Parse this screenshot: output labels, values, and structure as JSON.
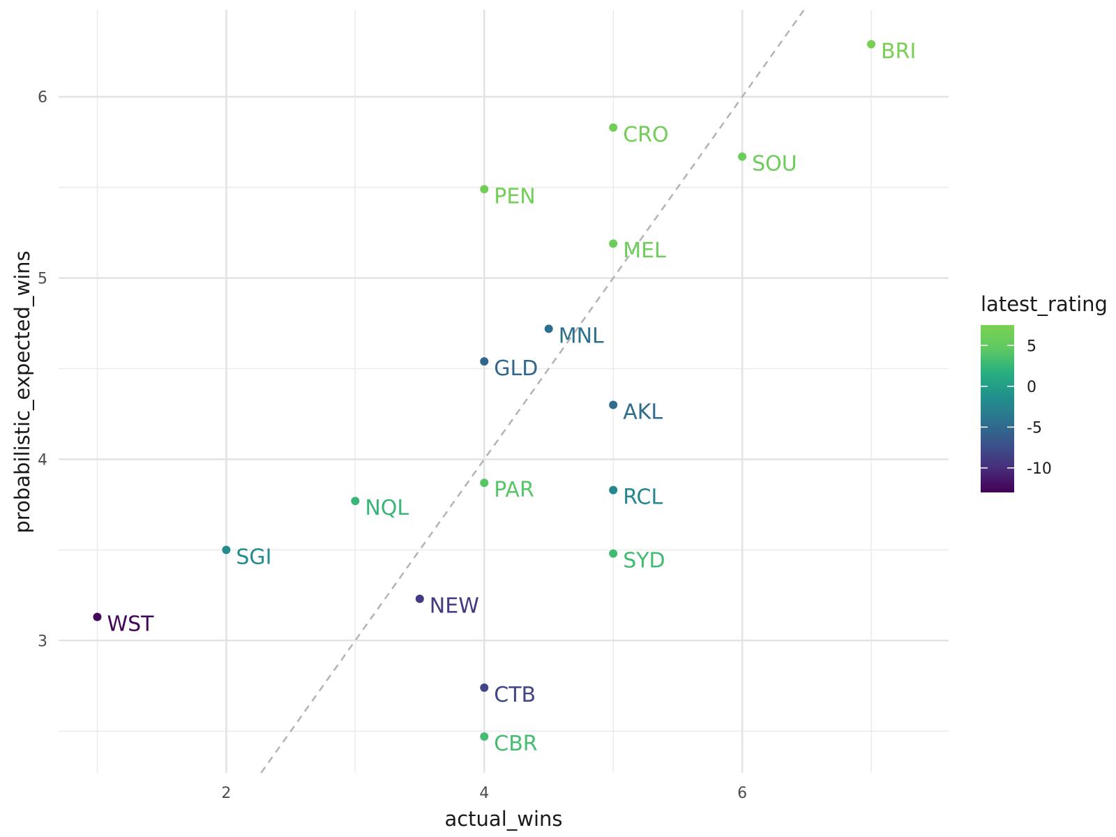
{
  "chart_data": {
    "type": "scatter",
    "title": "",
    "xlabel": "actual_wins",
    "ylabel": "probabilistic_expected_wins",
    "xlim": [
      0.7,
      7.6
    ],
    "ylim": [
      2.27,
      6.48
    ],
    "x_ticks": [
      2,
      4,
      6
    ],
    "y_ticks": [
      3,
      4,
      5,
      6
    ],
    "grid": true,
    "reference_line": {
      "style": "dashed",
      "color": "#b3b3b3",
      "slope": 1,
      "intercept": 0
    },
    "legend": {
      "title": "latest_rating",
      "placement": "right",
      "type": "colorbar",
      "range": [
        -13,
        7.5
      ],
      "ticks": [
        5,
        0,
        -5,
        -10
      ],
      "tick_labels": [
        "5",
        "0",
        "-5",
        "-10"
      ],
      "colors": [
        "#440154",
        "#472d7b",
        "#3b528b",
        "#2c728e",
        "#21918c",
        "#28ae80",
        "#5ec962",
        "#7ad151"
      ]
    },
    "points": [
      {
        "label": "BRI",
        "x": 7,
        "y": 6.29,
        "rating": 7.2
      },
      {
        "label": "CRO",
        "x": 5,
        "y": 5.83,
        "rating": 6.5
      },
      {
        "label": "SOU",
        "x": 6,
        "y": 5.67,
        "rating": 6.0
      },
      {
        "label": "PEN",
        "x": 4,
        "y": 5.49,
        "rating": 6.6
      },
      {
        "label": "MEL",
        "x": 5,
        "y": 5.19,
        "rating": 6.0
      },
      {
        "label": "MNL",
        "x": 4.5,
        "y": 4.72,
        "rating": -4.5
      },
      {
        "label": "GLD",
        "x": 4,
        "y": 4.54,
        "rating": -5.2
      },
      {
        "label": "AKL",
        "x": 5,
        "y": 4.3,
        "rating": -4.8
      },
      {
        "label": "PAR",
        "x": 4,
        "y": 3.87,
        "rating": 4.2
      },
      {
        "label": "RCL",
        "x": 5,
        "y": 3.83,
        "rating": -2.2
      },
      {
        "label": "NQL",
        "x": 3,
        "y": 3.77,
        "rating": 2.5
      },
      {
        "label": "SGI",
        "x": 2,
        "y": 3.5,
        "rating": -1.8
      },
      {
        "label": "SYD",
        "x": 5,
        "y": 3.48,
        "rating": 3.0
      },
      {
        "label": "NEW",
        "x": 3.5,
        "y": 3.23,
        "rating": -9.0
      },
      {
        "label": "WST",
        "x": 1,
        "y": 3.13,
        "rating": -12.6
      },
      {
        "label": "CTB",
        "x": 4,
        "y": 2.74,
        "rating": -8.2
      },
      {
        "label": "CBR",
        "x": 4,
        "y": 2.47,
        "rating": 3.2
      }
    ]
  }
}
